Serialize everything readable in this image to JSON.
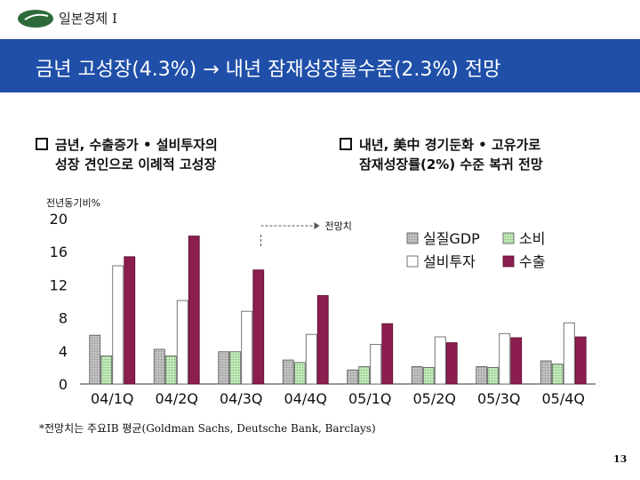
{
  "header": {
    "section_label": "일본경제 I",
    "title": "금년 고성장(4.3%) → 내년 잠재성장률수준(2.3%) 전망"
  },
  "bullets": {
    "left": [
      "금년, 수출증가 • 설비투자의",
      "성장 견인으로 이례적 고성장"
    ],
    "right": [
      "내년, 美中 경기둔화 • 고유가로",
      "잠재성장률(2%) 수준 복귀 전망"
    ]
  },
  "chart_data": {
    "type": "bar",
    "ylabel": "전년동기비%",
    "yticks": [
      0,
      4,
      8,
      12,
      16,
      20
    ],
    "ylim": [
      0,
      20
    ],
    "categories": [
      "04/1Q",
      "04/2Q",
      "04/3Q",
      "04/4Q",
      "05/1Q",
      "05/2Q",
      "05/3Q",
      "05/4Q"
    ],
    "series": [
      {
        "name": "실질GDP",
        "values": [
          5.9,
          4.2,
          3.9,
          2.9,
          1.7,
          2.1,
          2.1,
          2.8
        ]
      },
      {
        "name": "소비",
        "values": [
          3.4,
          3.4,
          3.9,
          2.6,
          2.1,
          2.0,
          2.0,
          2.4
        ]
      },
      {
        "name": "설비투자",
        "values": [
          14.3,
          10.1,
          8.8,
          6.0,
          4.8,
          5.7,
          6.1,
          7.4
        ]
      },
      {
        "name": "수출",
        "values": [
          15.4,
          17.9,
          13.8,
          10.7,
          7.3,
          5.0,
          5.6,
          5.7
        ]
      }
    ],
    "annotation": "전망치",
    "forecast_start_index": 3,
    "colors": {
      "실질GDP": "#bfbfbf",
      "소비": "#bfe7b8",
      "설비투자": "#ffffff",
      "수출": "#8b1d4f"
    },
    "legend_position": "top-right"
  },
  "footnote": "*전망치는 주요IB 평균(Goldman Sachs, Deutsche Bank, Barclays)",
  "page_number": "13"
}
